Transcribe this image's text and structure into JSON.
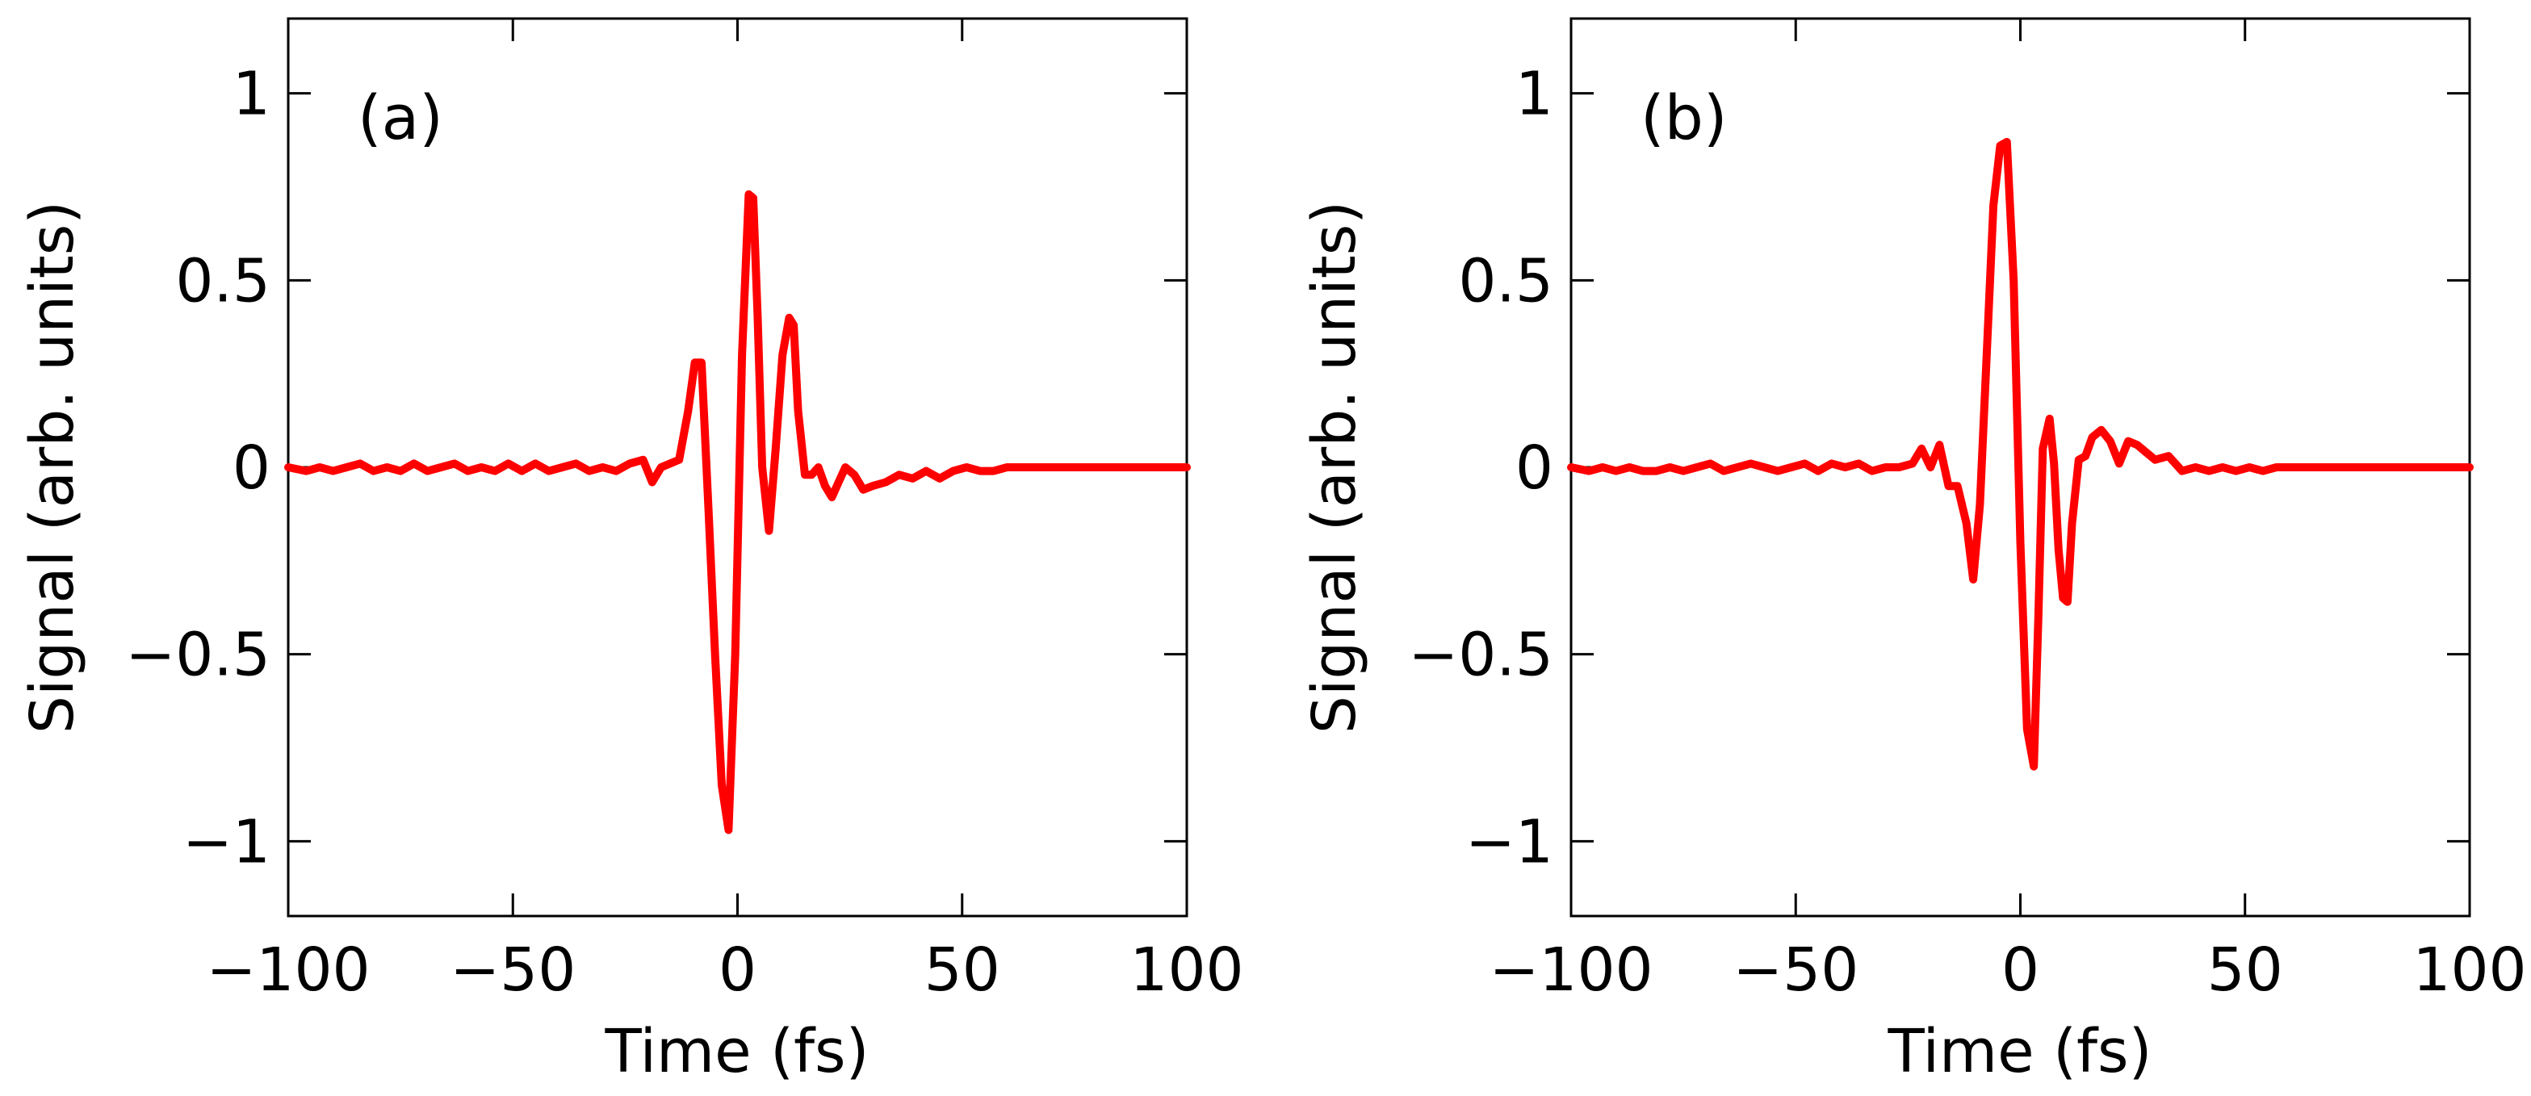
{
  "chart_data": [
    {
      "type": "line",
      "panel_label": "(a)",
      "xlabel": "Time (fs)",
      "ylabel": "Signal (arb. units)",
      "xlim": [
        -100,
        100
      ],
      "ylim": [
        -1.2,
        1.2
      ],
      "xticks": [
        -100,
        -50,
        0,
        50,
        100
      ],
      "xtick_labels": [
        "−100",
        "−50",
        "0",
        "50",
        "100"
      ],
      "yticks": [
        -1,
        -0.5,
        0,
        0.5,
        1
      ],
      "ytick_labels": [
        "−1",
        "−0.5",
        "0",
        "0.5",
        "1"
      ],
      "series": [
        {
          "name": "signal-a",
          "color": "#ff0000",
          "x": [
            -100,
            -96,
            -93,
            -90,
            -87,
            -84,
            -81,
            -78,
            -75,
            -72,
            -69,
            -66,
            -63,
            -60,
            -57,
            -54,
            -51,
            -48,
            -45,
            -42,
            -39,
            -36,
            -33,
            -30,
            -27,
            -24,
            -21,
            -19,
            -17,
            -15,
            -13,
            -11,
            -9.5,
            -8,
            -6.5,
            -5,
            -3.5,
            -2,
            -0.5,
            1,
            2.5,
            3.5,
            4.5,
            5.5,
            7,
            8.5,
            10,
            11.5,
            12.5,
            13.5,
            15,
            16.5,
            18,
            19.5,
            21,
            22.5,
            24,
            26,
            28,
            30,
            33,
            36,
            39,
            42,
            45,
            48,
            51,
            54,
            57,
            60,
            63,
            66,
            69,
            72,
            75,
            78,
            81,
            84,
            87,
            90,
            93,
            96,
            100
          ],
          "y": [
            0,
            -0.01,
            0,
            -0.01,
            0,
            0.01,
            -0.01,
            0,
            -0.01,
            0.01,
            -0.01,
            0,
            0.01,
            -0.01,
            0,
            -0.01,
            0.01,
            -0.01,
            0.01,
            -0.01,
            0,
            0.01,
            -0.01,
            0,
            -0.01,
            0.01,
            0.02,
            -0.04,
            0,
            0.01,
            0.02,
            0.15,
            0.28,
            0.28,
            -0.1,
            -0.5,
            -0.85,
            -0.97,
            -0.5,
            0.3,
            0.73,
            0.72,
            0.4,
            0,
            -0.17,
            0.05,
            0.3,
            0.4,
            0.38,
            0.15,
            -0.02,
            -0.02,
            0,
            -0.05,
            -0.08,
            -0.04,
            0,
            -0.02,
            -0.06,
            -0.05,
            -0.04,
            -0.02,
            -0.03,
            -0.01,
            -0.03,
            -0.01,
            0,
            -0.01,
            -0.01,
            0,
            0,
            0,
            0,
            0,
            0,
            0,
            0,
            0,
            0,
            0,
            0,
            0,
            0
          ]
        }
      ]
    },
    {
      "type": "line",
      "panel_label": "(b)",
      "xlabel": "Time (fs)",
      "ylabel": "Signal (arb. units)",
      "xlim": [
        -100,
        100
      ],
      "ylim": [
        -1.2,
        1.2
      ],
      "xticks": [
        -100,
        -50,
        0,
        50,
        100
      ],
      "xtick_labels": [
        "−100",
        "−50",
        "0",
        "50",
        "100"
      ],
      "yticks": [
        -1,
        -0.5,
        0,
        0.5,
        1
      ],
      "ytick_labels": [
        "−1",
        "−0.5",
        "0",
        "0.5",
        "1"
      ],
      "series": [
        {
          "name": "signal-b",
          "color": "#ff0000",
          "x": [
            -100,
            -96,
            -93,
            -90,
            -87,
            -84,
            -81,
            -78,
            -75,
            -72,
            -69,
            -66,
            -63,
            -60,
            -57,
            -54,
            -51,
            -48,
            -45,
            -42,
            -39,
            -36,
            -33,
            -30,
            -27,
            -24,
            -22,
            -20,
            -18,
            -16,
            -14,
            -12,
            -10.5,
            -9,
            -7.5,
            -6,
            -4.5,
            -3,
            -1.5,
            0,
            1.5,
            3,
            4,
            5,
            6.5,
            7.5,
            8.5,
            9.5,
            10.5,
            11.5,
            13,
            14.5,
            16,
            18,
            20,
            22,
            24,
            26,
            28,
            30,
            33,
            36,
            39,
            42,
            45,
            48,
            51,
            54,
            57,
            60,
            63,
            66,
            69,
            72,
            75,
            78,
            81,
            84,
            87,
            90,
            93,
            96,
            100
          ],
          "y": [
            0,
            -0.01,
            0,
            -0.01,
            0,
            -0.01,
            -0.01,
            0,
            -0.01,
            0,
            0.01,
            -0.01,
            0,
            0.01,
            0,
            -0.01,
            0,
            0.01,
            -0.01,
            0.01,
            0,
            0.01,
            -0.01,
            0,
            0,
            0.01,
            0.05,
            0,
            0.06,
            -0.05,
            -0.05,
            -0.15,
            -0.3,
            -0.1,
            0.3,
            0.7,
            0.86,
            0.87,
            0.5,
            -0.2,
            -0.7,
            -0.8,
            -0.4,
            0.05,
            0.13,
            0.01,
            -0.22,
            -0.35,
            -0.36,
            -0.15,
            0.02,
            0.03,
            0.08,
            0.1,
            0.07,
            0.01,
            0.07,
            0.06,
            0.04,
            0.02,
            0.03,
            -0.01,
            0,
            -0.01,
            0,
            -0.01,
            0,
            -0.01,
            0,
            0,
            0,
            0,
            0,
            0,
            0,
            0,
            0,
            0,
            0,
            0,
            0,
            0,
            0
          ]
        }
      ]
    }
  ]
}
